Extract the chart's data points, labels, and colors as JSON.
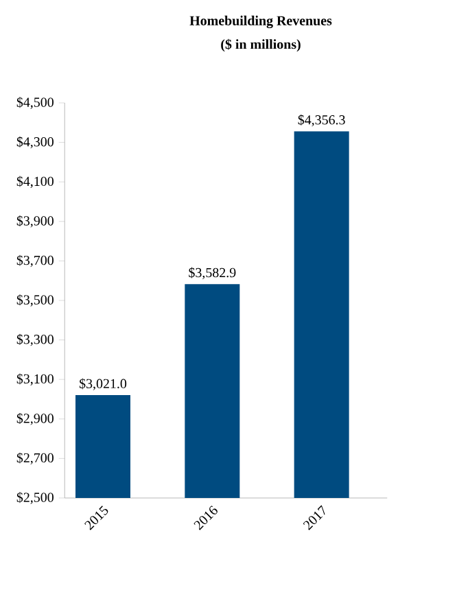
{
  "chart_data": {
    "type": "bar",
    "title": "Homebuilding Revenues",
    "subtitle": "($ in millions)",
    "categories": [
      "2015",
      "2016",
      "2017"
    ],
    "values": [
      3021.0,
      3582.9,
      4356.3
    ],
    "value_labels": [
      "$3,021.0",
      "$3,582.9",
      "$4,356.3"
    ],
    "color": "#004b80",
    "ylim": [
      2500,
      4500
    ],
    "yticks": [
      {
        "value": 2500,
        "label": "$2,500"
      },
      {
        "value": 2700,
        "label": "$2,700"
      },
      {
        "value": 2900,
        "label": "$2,900"
      },
      {
        "value": 3100,
        "label": "$3,100"
      },
      {
        "value": 3300,
        "label": "$3,300"
      },
      {
        "value": 3500,
        "label": "$3,500"
      },
      {
        "value": 3700,
        "label": "$3,700"
      },
      {
        "value": 3900,
        "label": "$3,900"
      },
      {
        "value": 4100,
        "label": "$4,100"
      },
      {
        "value": 4300,
        "label": "$4,300"
      },
      {
        "value": 4500,
        "label": "$4,500"
      }
    ],
    "grid": false
  }
}
